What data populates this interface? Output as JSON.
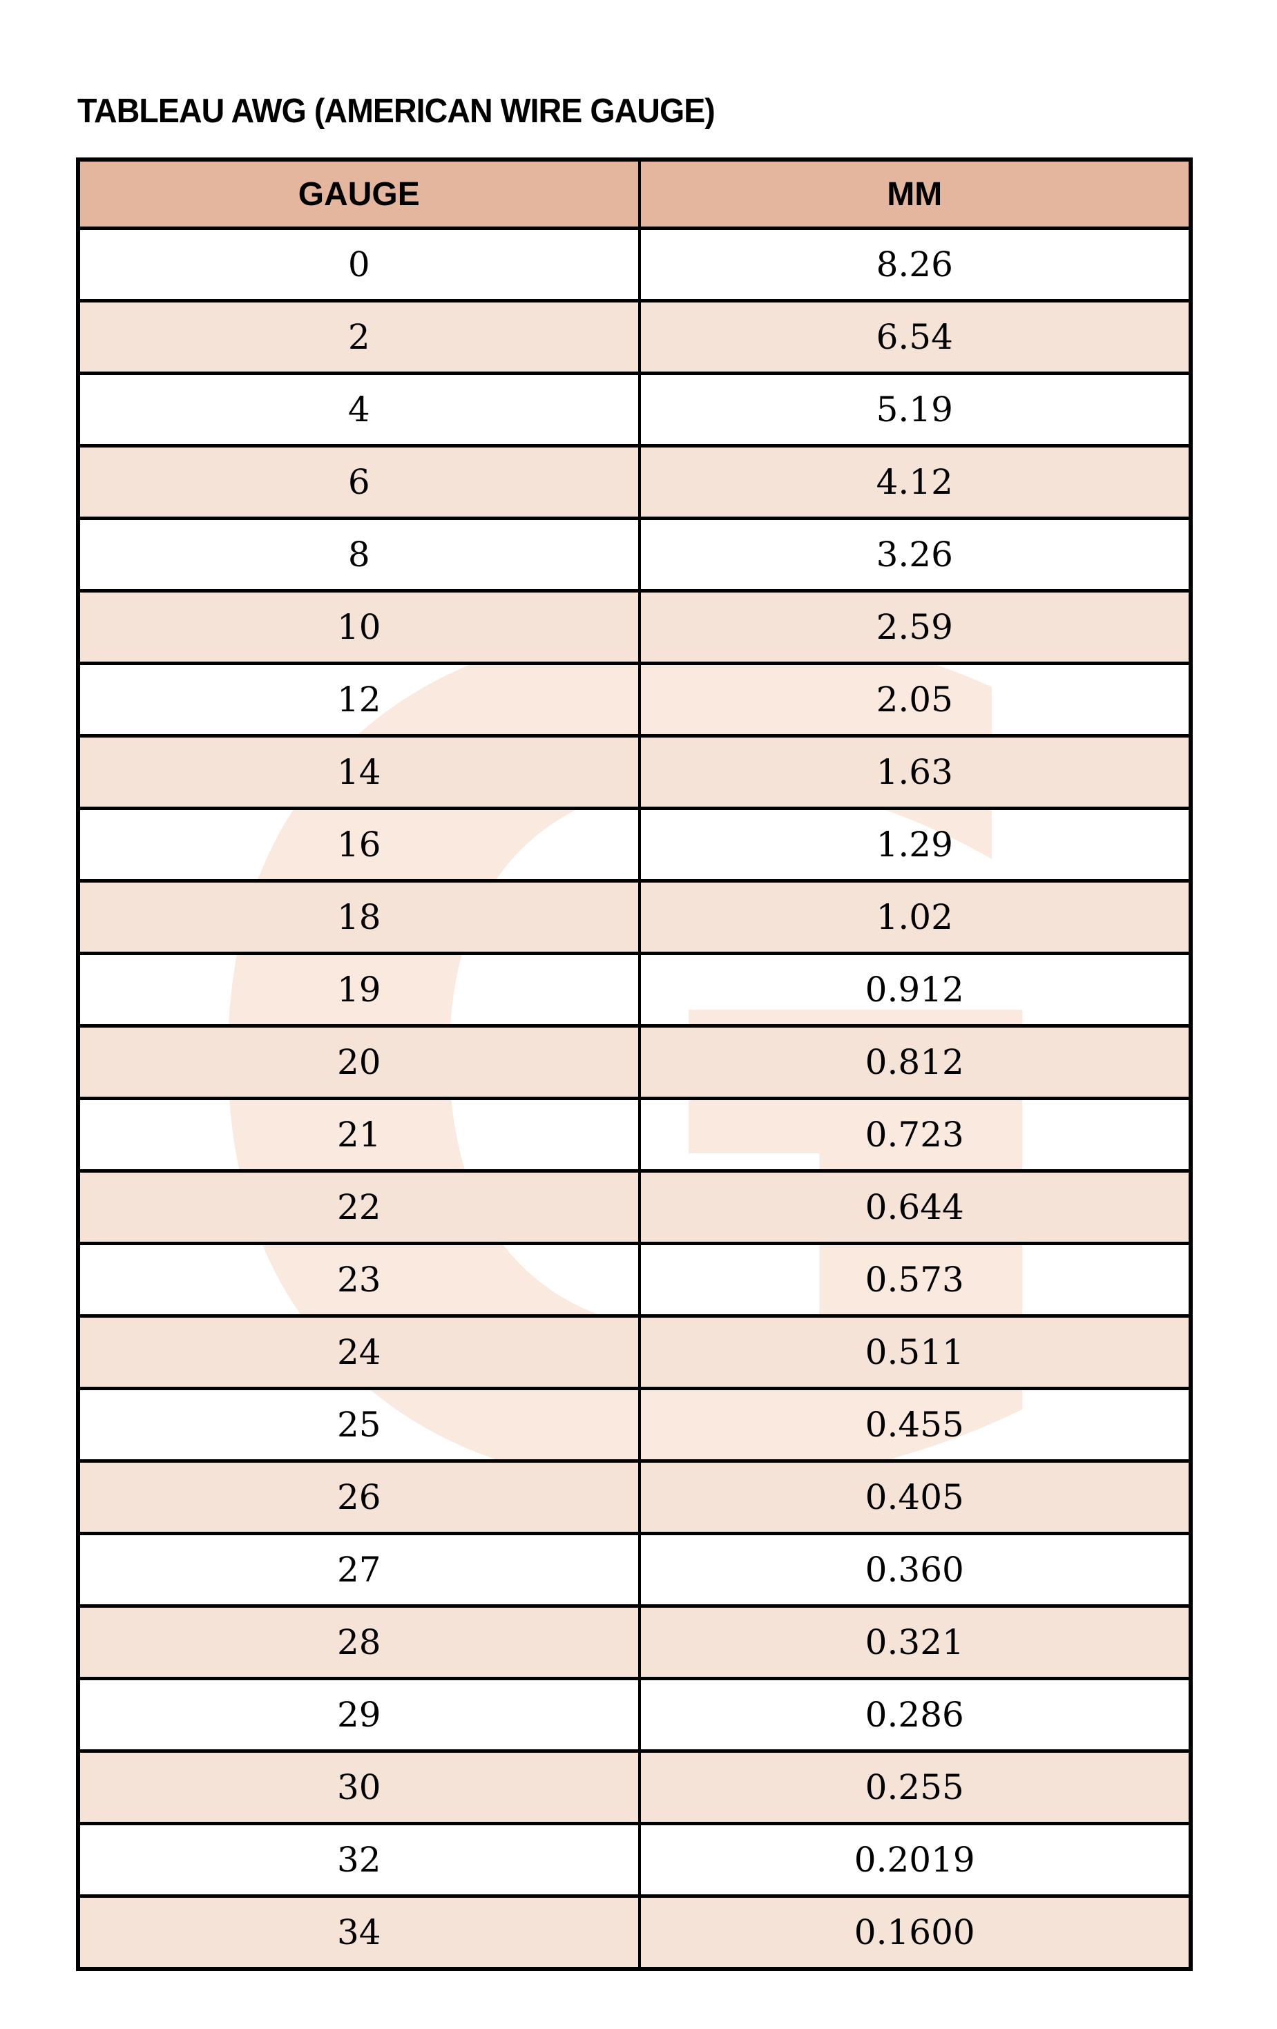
{
  "title": "TABLEAU AWG (AMERICAN WIRE GAUGE)",
  "watermark": {
    "letter": "G"
  },
  "colors": {
    "header_bg": "#e4b69d",
    "alt_row_bg": "#f6e3d8",
    "watermark": "#f9e9df",
    "border": "#000000",
    "text": "#000000",
    "page_bg": "#ffffff"
  },
  "table": {
    "headers": [
      "GAUGE",
      "MM"
    ],
    "rows": [
      [
        "0",
        "8.26"
      ],
      [
        "2",
        "6.54"
      ],
      [
        "4",
        "5.19"
      ],
      [
        "6",
        "4.12"
      ],
      [
        "8",
        "3.26"
      ],
      [
        "10",
        "2.59"
      ],
      [
        "12",
        "2.05"
      ],
      [
        "14",
        "1.63"
      ],
      [
        "16",
        "1.29"
      ],
      [
        "18",
        "1.02"
      ],
      [
        "19",
        "0.912"
      ],
      [
        "20",
        "0.812"
      ],
      [
        "21",
        "0.723"
      ],
      [
        "22",
        "0.644"
      ],
      [
        "23",
        "0.573"
      ],
      [
        "24",
        "0.511"
      ],
      [
        "25",
        "0.455"
      ],
      [
        "26",
        "0.405"
      ],
      [
        "27",
        "0.360"
      ],
      [
        "28",
        "0.321"
      ],
      [
        "29",
        "0.286"
      ],
      [
        "30",
        "0.255"
      ],
      [
        "32",
        "0.2019"
      ],
      [
        "34",
        "0.1600"
      ]
    ]
  },
  "chart_data": {
    "type": "table",
    "title": "TABLEAU AWG (AMERICAN WIRE GAUGE)",
    "columns": [
      "GAUGE",
      "MM"
    ],
    "gauge": [
      0,
      2,
      4,
      6,
      8,
      10,
      12,
      14,
      16,
      18,
      19,
      20,
      21,
      22,
      23,
      24,
      25,
      26,
      27,
      28,
      29,
      30,
      32,
      34
    ],
    "mm": [
      8.26,
      6.54,
      5.19,
      4.12,
      3.26,
      2.59,
      2.05,
      1.63,
      1.29,
      1.02,
      0.912,
      0.812,
      0.723,
      0.644,
      0.573,
      0.511,
      0.455,
      0.405,
      0.36,
      0.321,
      0.286,
      0.255,
      0.2019,
      0.16
    ]
  }
}
